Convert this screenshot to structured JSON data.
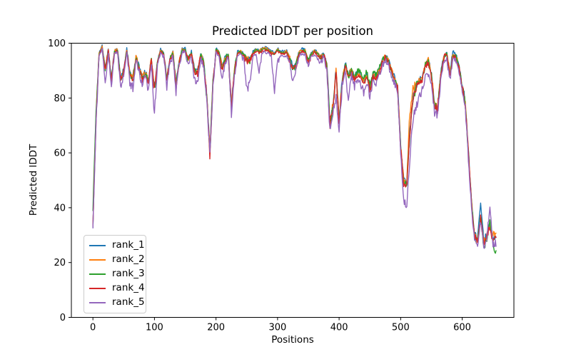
{
  "chart_data": {
    "type": "line",
    "title": "Predicted lDDT per position",
    "xlabel": "Positions",
    "ylabel": "Predicted lDDT",
    "xlim": [
      -35,
      684
    ],
    "ylim": [
      0,
      100
    ],
    "xticks": [
      0,
      100,
      200,
      300,
      400,
      500,
      600
    ],
    "yticks": [
      0,
      20,
      40,
      60,
      80,
      100
    ],
    "grid": false,
    "legend_position": "lower left",
    "background": "#ffffff",
    "axis_color": "#000000",
    "x_start": 0,
    "x_step": 5,
    "jitter_amplitude": 1.0,
    "series": [
      {
        "name": "rank_1",
        "color": "#1f77b4",
        "values": [
          34,
          73,
          96.5,
          99,
          90.5,
          98,
          87,
          97.5,
          98,
          87,
          90.5,
          98,
          89,
          87.5,
          95.5,
          91.5,
          87.5,
          89.5,
          86.5,
          94.5,
          83.5,
          93.5,
          98,
          96.5,
          87.5,
          94.5,
          97,
          85,
          93.5,
          98,
          98,
          94.5,
          97,
          90.5,
          89.5,
          96,
          93.5,
          80.5,
          61,
          85.5,
          98,
          97,
          91.5,
          95,
          96,
          77.5,
          90.5,
          97,
          97.5,
          96,
          94.5,
          94,
          97,
          98,
          97.5,
          98,
          98.5,
          98,
          97,
          96.5,
          98,
          97,
          97,
          97.3,
          94.5,
          91,
          92.5,
          97,
          98,
          97.5,
          94,
          96.5,
          97.5,
          96.5,
          95,
          96.5,
          92.5,
          71.5,
          77.5,
          90.5,
          71.5,
          86.5,
          92.5,
          88.5,
          90.5,
          87.5,
          89.5,
          88,
          86.5,
          88.5,
          83.5,
          88.5,
          87.5,
          90.5,
          93.5,
          95.5,
          94,
          90.5,
          87.5,
          84.5,
          63,
          50,
          49,
          69,
          81,
          84.5,
          86.5,
          87.5,
          92.5,
          94,
          88.5,
          77.5,
          76.5,
          88.5,
          95.5,
          96.5,
          89.5,
          97.5,
          95.5,
          91.5,
          84.5,
          78.5,
          61,
          43,
          30.5,
          28.5,
          43,
          27.5,
          30.5,
          34,
          28.5,
          28.5
        ]
      },
      {
        "name": "rank_2",
        "color": "#ff7f0e",
        "values": [
          33.5,
          72.3,
          96.2,
          98.7,
          90.2,
          97.7,
          86.7,
          97.2,
          97.7,
          86.7,
          90.2,
          97.7,
          88.7,
          87.2,
          95.2,
          91.2,
          87.2,
          89.2,
          86.2,
          94.2,
          83.2,
          93.2,
          97.7,
          96.2,
          87.2,
          94.2,
          96.7,
          84.7,
          93.2,
          97.7,
          97.7,
          94.2,
          96.7,
          90.2,
          89.2,
          95.7,
          93.2,
          80.2,
          60.5,
          85.2,
          97.7,
          96.7,
          91.2,
          94.7,
          95.7,
          77.2,
          90.2,
          96.7,
          97.2,
          95.7,
          94.2,
          93.7,
          96.7,
          97.7,
          97.2,
          97.7,
          98.2,
          97.7,
          96.7,
          96.2,
          97.7,
          96.7,
          96.7,
          97,
          94.2,
          90.7,
          92.2,
          96.7,
          97.7,
          97.2,
          93.7,
          96.2,
          97.2,
          96.2,
          94.7,
          96.2,
          92.2,
          71.2,
          77.2,
          90.2,
          71.2,
          86.2,
          92.2,
          88.2,
          90.2,
          87.2,
          89.2,
          87.7,
          86.2,
          88.2,
          83.2,
          88.2,
          87.2,
          90.2,
          93.2,
          95.2,
          93.7,
          90.2,
          87.2,
          84.2,
          62.5,
          50.5,
          49.5,
          75,
          83,
          85,
          86.2,
          87.2,
          92.2,
          94.5,
          88.2,
          77.2,
          76.2,
          88.2,
          95.2,
          96.2,
          89.2,
          95.7,
          95.2,
          91.2,
          84.2,
          78.2,
          60.5,
          42.5,
          30.2,
          28.2,
          36,
          27.2,
          30.2,
          33,
          30,
          31
        ]
      },
      {
        "name": "rank_3",
        "color": "#2ca02c",
        "values": [
          40,
          74,
          96,
          98.5,
          90,
          97.5,
          86.5,
          97,
          97.5,
          86.5,
          90,
          97.5,
          88.5,
          86.5,
          95,
          91,
          87,
          89,
          86,
          94,
          83,
          93,
          97.5,
          96,
          87,
          94,
          96.5,
          84.5,
          93,
          97.5,
          97.5,
          94,
          96.5,
          90,
          89,
          95.5,
          93,
          80,
          60,
          85,
          97.5,
          96.5,
          91,
          94.5,
          95.5,
          77,
          90,
          96.5,
          97,
          95.5,
          94,
          93.5,
          96.5,
          97.5,
          97,
          97.5,
          98,
          97.5,
          96.5,
          96,
          97.5,
          96.5,
          96.5,
          96.8,
          94,
          90.5,
          92,
          96.5,
          97.5,
          97,
          93.5,
          96,
          97,
          96,
          94.5,
          96,
          92,
          71,
          77,
          90,
          71,
          86,
          92,
          88,
          90,
          87,
          90.5,
          89,
          87.5,
          89.5,
          84.5,
          89.5,
          88.5,
          91.5,
          94,
          95,
          93.5,
          90,
          87,
          84,
          62,
          49,
          48,
          68,
          80,
          84,
          86,
          87,
          92,
          93.5,
          88,
          77,
          76,
          88,
          95,
          96,
          89,
          95.5,
          95,
          91,
          84,
          78,
          60,
          42,
          30,
          27,
          37,
          25,
          29,
          35,
          26,
          24
        ]
      },
      {
        "name": "rank_4",
        "color": "#d62728",
        "values": [
          33,
          71.6,
          95.6,
          98.1,
          89.6,
          97.1,
          86.1,
          96.6,
          97.1,
          86.1,
          89.6,
          97.1,
          88.1,
          86.1,
          94.6,
          90.6,
          86.6,
          88.6,
          85.6,
          93.6,
          82.6,
          92.6,
          97.1,
          95.6,
          86.6,
          93.6,
          96.1,
          84.1,
          92.6,
          97.1,
          97.1,
          93.6,
          96.1,
          89.6,
          88.6,
          95.1,
          92.6,
          79.6,
          59,
          84.6,
          97.1,
          96.1,
          90.6,
          94.1,
          95.1,
          76.6,
          89.6,
          96.1,
          96.6,
          95.1,
          93.6,
          93.1,
          96.1,
          97.1,
          96.6,
          97.1,
          97.6,
          97.1,
          96.1,
          95.6,
          97.1,
          96.1,
          96.1,
          96.4,
          93.6,
          90.1,
          91.6,
          96.1,
          97.1,
          96.6,
          93.1,
          95.6,
          96.6,
          95.6,
          94.1,
          95.6,
          91.6,
          70.6,
          76.6,
          89.6,
          70.6,
          85.6,
          91.6,
          87.6,
          89.6,
          86.6,
          88.6,
          87.1,
          85.6,
          87.6,
          82.6,
          87.6,
          86.6,
          89.6,
          92.6,
          94.6,
          93.1,
          89.6,
          86.6,
          83.6,
          61.6,
          48.5,
          47.5,
          67.5,
          79.6,
          83.6,
          85.6,
          86.6,
          91.6,
          93.1,
          87.6,
          76.6,
          75.6,
          87.6,
          94.6,
          95.6,
          88.6,
          95.1,
          94.6,
          90.6,
          83.6,
          77.6,
          59.5,
          41.5,
          29.6,
          27.6,
          37,
          26.6,
          29.6,
          33,
          27.6,
          29
        ]
      },
      {
        "name": "rank_5",
        "color": "#9467bd",
        "values": [
          33.5,
          70,
          95.3,
          97.8,
          85.5,
          96.8,
          83.5,
          96.3,
          96.8,
          83,
          88,
          96.8,
          85.5,
          83.5,
          94.3,
          89.5,
          84.5,
          87.5,
          83.5,
          93,
          74,
          92,
          96.8,
          94.8,
          84.5,
          93,
          95.3,
          82,
          92,
          96.8,
          96.8,
          91.5,
          95.3,
          86.5,
          85.5,
          94.3,
          91.5,
          78,
          60,
          83.5,
          96.8,
          95.3,
          86.5,
          93.3,
          94.3,
          74.5,
          88.5,
          95.3,
          95.8,
          94.3,
          83.5,
          85,
          95.3,
          96.3,
          89,
          96.3,
          96.8,
          96.3,
          95.3,
          83,
          93,
          95.3,
          95.3,
          95.6,
          92.5,
          85,
          90.5,
          95.3,
          96.3,
          95.8,
          92,
          94.8,
          95.8,
          94.8,
          93,
          94.8,
          90.5,
          68.5,
          75,
          80,
          68.5,
          84.5,
          90.5,
          79,
          88.5,
          84.5,
          87,
          85.5,
          82,
          86,
          80,
          86.5,
          84.5,
          88,
          91.5,
          93.5,
          92,
          88,
          85,
          82,
          60,
          42,
          41,
          58,
          72,
          77,
          80,
          83,
          87.5,
          88.5,
          85.5,
          74.5,
          74,
          86,
          93.5,
          94.5,
          86.5,
          94,
          93.5,
          89.5,
          82.5,
          76.5,
          58,
          40,
          28.5,
          26.5,
          35,
          25.5,
          28.5,
          41,
          26.5,
          27
        ]
      }
    ]
  }
}
